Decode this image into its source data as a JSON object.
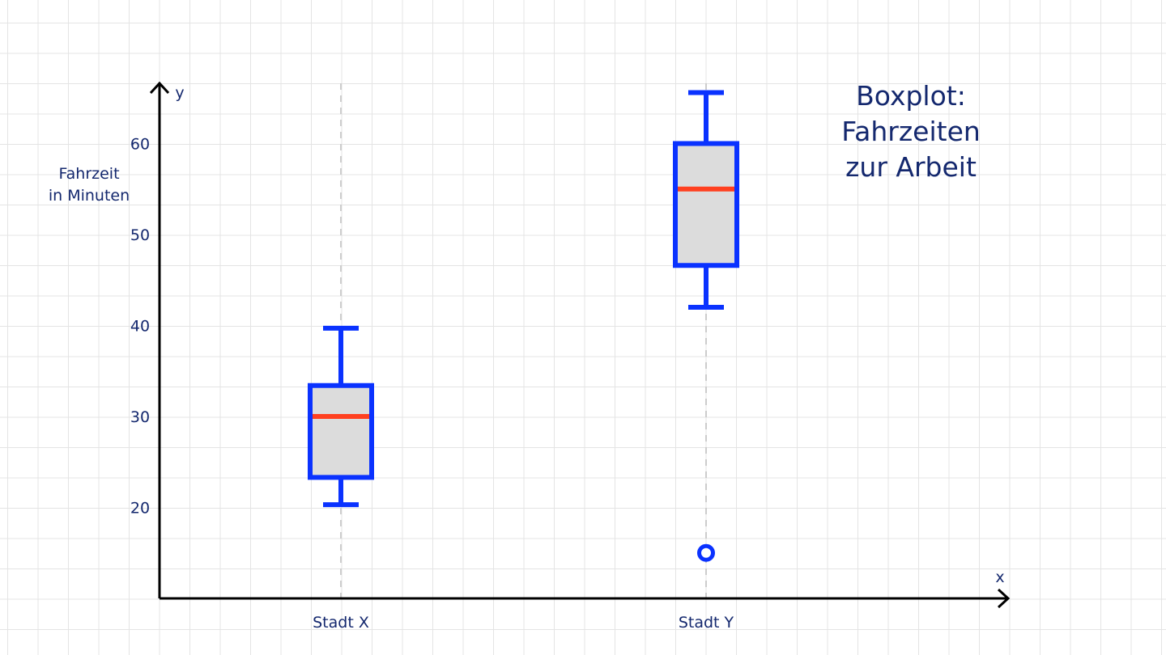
{
  "chart_data": {
    "type": "box",
    "title_lines": [
      "Boxplot:",
      "Fahrzeiten",
      "zur Arbeit"
    ],
    "ylabel_lines": [
      "Fahrzeit",
      "in Minuten"
    ],
    "x_axis_letter": "x",
    "y_axis_letter": "y",
    "categories": [
      "Stadt X",
      "Stadt Y"
    ],
    "y_ticks": [
      20,
      30,
      40,
      50,
      60
    ],
    "ylim": [
      10,
      66
    ],
    "grid": true,
    "boxes": [
      {
        "category": "Stadt X",
        "min": 20.3,
        "q1": 23.3,
        "median": 30,
        "q3": 33.4,
        "max": 39.7,
        "outliers": []
      },
      {
        "category": "Stadt Y",
        "min": 42,
        "q1": 46.6,
        "median": 55,
        "q3": 60,
        "max": 65.6,
        "outliers": [
          15
        ]
      }
    ]
  },
  "colors": {
    "box_stroke": "#0a32ff",
    "box_fill": "#dcdcdc",
    "median": "#ff4020",
    "axis": "#000000",
    "text": "#14286e",
    "guide": "#cccccc"
  }
}
